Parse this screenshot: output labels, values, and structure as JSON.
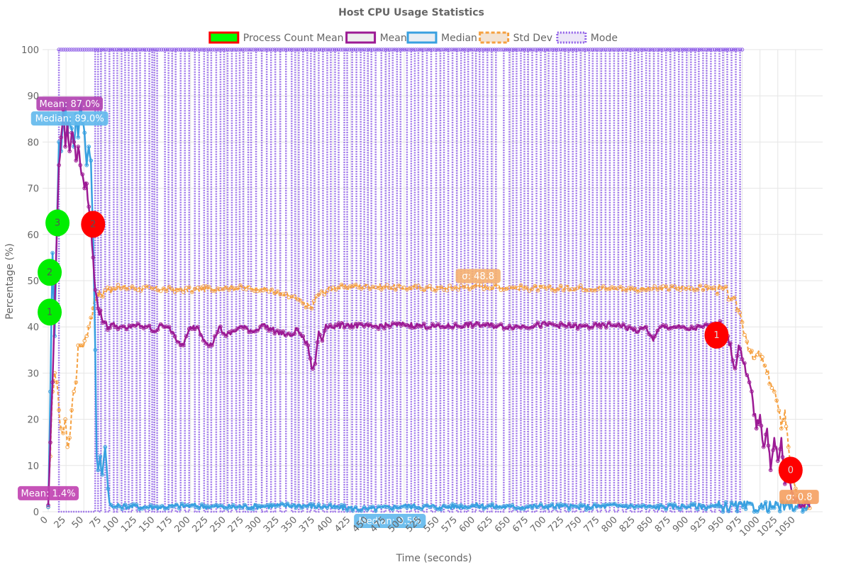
{
  "chart_data": {
    "type": "line",
    "title": "Host CPU Usage Statistics",
    "xlabel": "Time (seconds)",
    "ylabel": "Percentage (%)",
    "xlim": [
      -8,
      1088
    ],
    "ylim": [
      0,
      100
    ],
    "x_ticks": [
      0,
      25,
      50,
      75,
      100,
      125,
      150,
      175,
      200,
      225,
      250,
      275,
      300,
      325,
      350,
      375,
      400,
      425,
      450,
      475,
      500,
      525,
      550,
      575,
      600,
      625,
      650,
      675,
      700,
      725,
      750,
      775,
      800,
      825,
      850,
      875,
      900,
      925,
      950,
      975,
      1000,
      1025,
      1050
    ],
    "y_ticks": [
      0,
      10,
      20,
      30,
      40,
      50,
      60,
      70,
      80,
      90,
      100
    ],
    "grid": true,
    "legend_position": "top-center",
    "legend": [
      {
        "label": "Process Count Mean",
        "fill": "#00ff00",
        "stroke": "#ff0000",
        "dash": ""
      },
      {
        "label": "Mean",
        "fill": "#eeeeee",
        "stroke": "#9c1a94",
        "dash": ""
      },
      {
        "label": "Median",
        "fill": "#e8eef4",
        "stroke": "#38a0e0",
        "dash": ""
      },
      {
        "label": "Std Dev",
        "fill": "#f3e3d3",
        "stroke": "#f5a040",
        "dash": "5,3"
      },
      {
        "label": "Mode",
        "fill": "#ece6f8",
        "stroke": "#9060e8",
        "dash": "2,2"
      }
    ],
    "series": [
      {
        "name": "Mean",
        "color": "#9c1a94",
        "width": 2.5,
        "dash": "",
        "x": [
          0,
          3,
          6,
          9,
          12,
          15,
          18,
          21,
          24,
          27,
          30,
          33,
          36,
          39,
          42,
          45,
          48,
          51,
          54,
          57,
          60,
          63,
          66,
          70,
          75,
          80,
          85,
          90,
          100,
          110,
          120,
          130,
          140,
          150,
          160,
          170,
          180,
          190,
          200,
          210,
          220,
          230,
          240,
          250,
          270,
          290,
          300,
          320,
          340,
          350,
          360,
          365,
          370,
          375,
          380,
          385,
          390,
          400,
          420,
          450,
          500,
          550,
          600,
          650,
          700,
          750,
          800,
          830,
          840,
          850,
          860,
          880,
          900,
          920,
          940,
          950,
          955,
          960,
          965,
          970,
          975,
          980,
          985,
          990,
          995,
          1000,
          1005,
          1010,
          1015,
          1020,
          1025,
          1030,
          1035,
          1040,
          1045,
          1050,
          1060,
          1070
        ],
        "y": [
          1.4,
          15,
          28,
          44,
          60,
          75,
          81,
          87,
          79,
          84,
          78,
          82,
          80,
          76,
          79,
          75,
          73,
          70,
          71,
          66,
          62,
          55,
          48,
          44,
          42,
          41,
          40,
          40.5,
          40,
          39.5,
          40.5,
          40,
          40,
          39,
          40.5,
          40,
          37,
          36,
          40,
          40,
          37,
          36,
          40,
          38,
          40,
          39,
          40.5,
          39,
          38,
          39.5,
          37,
          36,
          31,
          32,
          39,
          37,
          40.5,
          40,
          40.5,
          40,
          40.5,
          40,
          40.5,
          40,
          40.5,
          40,
          40.5,
          39,
          40,
          37,
          40,
          40,
          39.5,
          40,
          40.5,
          40,
          38,
          34,
          31,
          36,
          33,
          30,
          28,
          24,
          18,
          21,
          14,
          18,
          9,
          16,
          11,
          16,
          6,
          8,
          4,
          2,
          1.5,
          1
        ]
      },
      {
        "name": "Median",
        "color": "#38a0e0",
        "width": 2.5,
        "dash": "",
        "x": [
          0,
          3,
          6,
          9,
          12,
          15,
          18,
          21,
          24,
          27,
          30,
          33,
          36,
          39,
          42,
          45,
          48,
          51,
          54,
          57,
          60,
          63,
          66,
          68,
          70,
          73,
          76,
          80,
          84,
          86,
          88,
          90,
          100,
          150,
          200,
          250,
          300,
          350,
          400,
          450,
          500,
          550,
          600,
          650,
          700,
          750,
          800,
          850,
          900,
          950,
          1000,
          1050,
          1070
        ],
        "y": [
          1,
          26,
          56,
          38,
          62,
          80,
          78,
          84,
          88,
          82,
          85,
          83,
          79,
          86,
          81,
          89,
          84,
          82,
          75,
          79,
          76,
          60,
          35,
          12,
          9,
          12,
          8,
          14,
          5,
          2,
          1.5,
          1,
          1.2,
          1,
          1.3,
          1,
          1.2,
          1.4,
          1,
          0.5,
          1.2,
          1,
          1.3,
          1,
          1.2,
          1,
          1.3,
          1,
          1.2,
          1.1,
          1,
          1.2,
          1
        ]
      },
      {
        "name": "Std Dev",
        "color": "#f5a040",
        "width": 2,
        "dash": "5,3",
        "x": [
          0,
          3,
          6,
          9,
          12,
          15,
          18,
          21,
          24,
          27,
          30,
          33,
          36,
          39,
          42,
          45,
          48,
          51,
          54,
          57,
          60,
          63,
          66,
          70,
          75,
          80,
          85,
          90,
          100,
          150,
          200,
          250,
          300,
          350,
          360,
          370,
          375,
          380,
          400,
          450,
          500,
          550,
          600,
          650,
          700,
          750,
          800,
          850,
          900,
          930,
          950,
          960,
          970,
          975,
          980,
          985,
          990,
          1000,
          1005,
          1010,
          1015,
          1020,
          1025,
          1030,
          1035,
          1040,
          1045,
          1050,
          1060,
          1070
        ],
        "y": [
          1,
          12,
          26,
          30,
          28,
          22,
          18,
          17,
          20,
          14,
          16,
          22,
          26,
          28,
          36,
          36,
          36,
          37,
          38,
          40,
          42,
          44,
          46,
          47,
          47,
          48,
          48,
          48.3,
          48.5,
          48.2,
          48,
          48.5,
          48.3,
          46,
          45,
          44,
          46,
          47,
          48.5,
          48.8,
          48.5,
          48.3,
          48.8,
          48.5,
          48.3,
          48.5,
          48.3,
          48.2,
          48.5,
          48.3,
          48,
          46,
          44,
          41,
          38,
          35,
          33,
          34,
          32,
          30,
          28,
          26,
          23,
          18,
          22,
          14,
          9,
          5,
          2,
          0.8
        ]
      }
    ],
    "mode_series": {
      "name": "Mode",
      "color": "#9060e8",
      "high": 100,
      "low": 0,
      "start": 15,
      "end": 975,
      "transitions": [
        15,
        66,
        70,
        74,
        80,
        86,
        92,
        97,
        103,
        108,
        113,
        118,
        124,
        129,
        136,
        142,
        146,
        149,
        153,
        164,
        169,
        174,
        179,
        186,
        192,
        198,
        206,
        212,
        219,
        224,
        229,
        236,
        242,
        247,
        252,
        258,
        264,
        269,
        274,
        281,
        285,
        292,
        300,
        307,
        313,
        319,
        326,
        334,
        342,
        347,
        352,
        358,
        364,
        369,
        374,
        380,
        386,
        392,
        397,
        403,
        408,
        416,
        420,
        427,
        433,
        439,
        444,
        449,
        454,
        460,
        468,
        474,
        479,
        484,
        490,
        495,
        504,
        510,
        515,
        520,
        526,
        532,
        538,
        545,
        551,
        556,
        562,
        568,
        574,
        580,
        585,
        590,
        596,
        601,
        606,
        611,
        617,
        623,
        629,
        640,
        648,
        653,
        658,
        664,
        669,
        674,
        680,
        686,
        692,
        698,
        703,
        709,
        714,
        720,
        726,
        731,
        737,
        742,
        748,
        754,
        760,
        765,
        771,
        777,
        783,
        789,
        795,
        801,
        807,
        812,
        818,
        824,
        829,
        834,
        840,
        845,
        851,
        857,
        862,
        868,
        874,
        880,
        886,
        891,
        897,
        903,
        909,
        914,
        920,
        925,
        931,
        937,
        943,
        948,
        954,
        960,
        966,
        972
      ]
    },
    "process_count_markers": [
      {
        "x": 2,
        "y": 43.2,
        "label": "1",
        "color": "#00ee00",
        "text_color": "#555555"
      },
      {
        "x": 2,
        "y": 51.8,
        "label": "2",
        "color": "#00ee00",
        "text_color": "#555555"
      },
      {
        "x": 13,
        "y": 62.5,
        "label": "3",
        "color": "#00ee00",
        "text_color": "#555555"
      },
      {
        "x": 63,
        "y": 62.2,
        "label": "2",
        "color": "#ff0000",
        "text_color": "#555555"
      },
      {
        "x": 939,
        "y": 38.2,
        "label": "1",
        "color": "#ff0000",
        "text_color": "#dddddd"
      },
      {
        "x": 1043,
        "y": 9,
        "label": "0",
        "color": "#ff0000",
        "text_color": "#dddddd"
      }
    ],
    "annotations": [
      {
        "x": 30,
        "y": 88.3,
        "text": "Mean: 87.0%",
        "color": "#b040b0",
        "anchor": "middle"
      },
      {
        "x": 30,
        "y": 85.1,
        "text": "Median: 89.0%",
        "color": "#60b8ec",
        "anchor": "middle"
      },
      {
        "x": 0,
        "y": 4,
        "text": "Mean: 1.4%",
        "color": "#c040b0",
        "anchor": "middle"
      },
      {
        "x": 480,
        "y": -2,
        "text": "Median: 0.5%",
        "color": "#60b8ec",
        "anchor": "middle"
      },
      {
        "x": 604,
        "y": 51,
        "text": "σ: 48.8",
        "color": "#f5b070",
        "anchor": "middle"
      },
      {
        "x": 1055,
        "y": 3.2,
        "text": "σ: 0.8",
        "color": "#f5a060",
        "anchor": "middle"
      }
    ]
  }
}
